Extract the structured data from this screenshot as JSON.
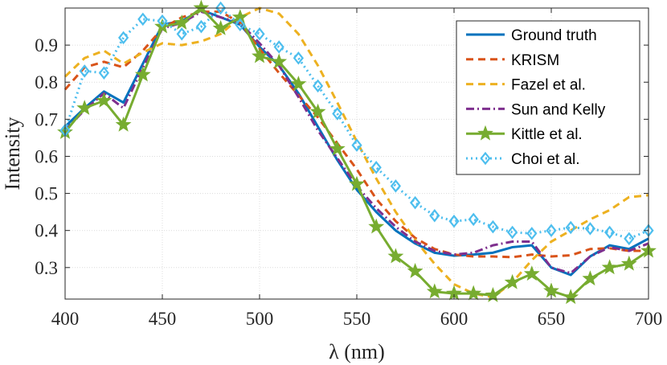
{
  "chart_data": {
    "type": "line",
    "title": "",
    "xlabel": "λ (nm)",
    "ylabel": "Intensity",
    "xlim": [
      400,
      700
    ],
    "ylim": [
      0.215,
      1.0
    ],
    "xticks": [
      400,
      450,
      500,
      550,
      600,
      650,
      700
    ],
    "yticks": [
      0.3,
      0.4,
      0.5,
      0.6,
      0.7,
      0.8,
      0.9
    ],
    "ytick_labels": [
      "0.3",
      "0.4",
      "0.5",
      "0.6",
      "0.7",
      "0.8",
      "0.9"
    ],
    "grid": true,
    "legend_position": "top-right",
    "series": [
      {
        "name": "Ground truth",
        "color": "#0072BD",
        "dash": "solid",
        "marker": "none",
        "x": [
          400,
          410,
          420,
          430,
          440,
          450,
          460,
          470,
          480,
          490,
          500,
          510,
          520,
          530,
          540,
          550,
          560,
          570,
          580,
          590,
          600,
          610,
          620,
          630,
          640,
          650,
          660,
          670,
          680,
          690,
          700
        ],
        "y": [
          0.68,
          0.73,
          0.775,
          0.745,
          0.85,
          0.955,
          0.965,
          0.995,
          0.975,
          0.955,
          0.895,
          0.845,
          0.77,
          0.68,
          0.59,
          0.51,
          0.45,
          0.4,
          0.365,
          0.34,
          0.332,
          0.335,
          0.34,
          0.355,
          0.36,
          0.3,
          0.28,
          0.33,
          0.36,
          0.35,
          0.378
        ]
      },
      {
        "name": "KRISM",
        "color": "#D95319",
        "dash": "dashed",
        "marker": "none",
        "x": [
          400,
          410,
          420,
          430,
          440,
          450,
          460,
          470,
          480,
          490,
          500,
          510,
          520,
          530,
          540,
          550,
          560,
          570,
          580,
          590,
          600,
          610,
          620,
          630,
          640,
          650,
          660,
          670,
          680,
          690,
          700
        ],
        "y": [
          0.78,
          0.84,
          0.855,
          0.84,
          0.885,
          0.945,
          0.975,
          0.99,
          0.99,
          0.96,
          0.89,
          0.825,
          0.765,
          0.705,
          0.635,
          0.565,
          0.485,
          0.425,
          0.38,
          0.35,
          0.335,
          0.33,
          0.33,
          0.328,
          0.335,
          0.33,
          0.333,
          0.35,
          0.352,
          0.345,
          0.345
        ]
      },
      {
        "name": "Fazel et al.",
        "color": "#EDB120",
        "dash": "dashed",
        "marker": "none",
        "x": [
          400,
          410,
          420,
          430,
          440,
          450,
          460,
          470,
          480,
          490,
          500,
          510,
          520,
          530,
          540,
          550,
          560,
          570,
          580,
          590,
          600,
          610,
          620,
          630,
          640,
          650,
          660,
          670,
          680,
          690,
          700
        ],
        "y": [
          0.815,
          0.865,
          0.885,
          0.85,
          0.88,
          0.905,
          0.9,
          0.91,
          0.93,
          0.975,
          1.0,
          0.985,
          0.93,
          0.845,
          0.745,
          0.64,
          0.54,
          0.45,
          0.375,
          0.31,
          0.255,
          0.23,
          0.22,
          0.26,
          0.32,
          0.37,
          0.4,
          0.43,
          0.455,
          0.49,
          0.495
        ]
      },
      {
        "name": "Sun and Kelly",
        "color": "#7E2F8E",
        "dash": "dashdot",
        "marker": "none",
        "x": [
          400,
          410,
          420,
          430,
          440,
          450,
          460,
          470,
          480,
          490,
          500,
          510,
          520,
          530,
          540,
          550,
          560,
          570,
          580,
          590,
          600,
          610,
          620,
          630,
          640,
          650,
          660,
          670,
          680,
          690,
          700
        ],
        "y": [
          0.67,
          0.725,
          0.77,
          0.73,
          0.84,
          0.945,
          0.96,
          0.99,
          0.975,
          0.96,
          0.905,
          0.845,
          0.76,
          0.67,
          0.595,
          0.52,
          0.46,
          0.41,
          0.37,
          0.345,
          0.335,
          0.34,
          0.36,
          0.37,
          0.37,
          0.3,
          0.285,
          0.33,
          0.355,
          0.345,
          0.365
        ]
      },
      {
        "name": "Kittle et al.",
        "color": "#77AC30",
        "dash": "solid",
        "marker": "star",
        "x": [
          400,
          410,
          420,
          430,
          440,
          450,
          460,
          470,
          480,
          490,
          500,
          510,
          520,
          530,
          540,
          550,
          560,
          570,
          580,
          590,
          600,
          610,
          620,
          630,
          640,
          650,
          660,
          670,
          680,
          690,
          700
        ],
        "y": [
          0.665,
          0.73,
          0.75,
          0.685,
          0.82,
          0.95,
          0.96,
          1.0,
          0.945,
          0.975,
          0.87,
          0.855,
          0.795,
          0.72,
          0.62,
          0.525,
          0.41,
          0.33,
          0.29,
          0.235,
          0.23,
          0.23,
          0.225,
          0.26,
          0.283,
          0.237,
          0.22,
          0.27,
          0.3,
          0.31,
          0.345
        ]
      },
      {
        "name": "Choi et al.",
        "color": "#4DBEEE",
        "dash": "dotted",
        "marker": "diamond",
        "x": [
          400,
          410,
          420,
          430,
          440,
          450,
          460,
          470,
          480,
          490,
          500,
          510,
          520,
          530,
          540,
          550,
          560,
          570,
          580,
          590,
          600,
          610,
          620,
          630,
          640,
          650,
          660,
          670,
          680,
          690,
          700
        ],
        "y": [
          0.67,
          0.83,
          0.825,
          0.92,
          0.97,
          0.965,
          0.93,
          0.95,
          1.0,
          0.955,
          0.93,
          0.895,
          0.865,
          0.79,
          0.715,
          0.63,
          0.57,
          0.52,
          0.475,
          0.44,
          0.425,
          0.43,
          0.41,
          0.395,
          0.392,
          0.4,
          0.408,
          0.405,
          0.395,
          0.378,
          0.4
        ]
      }
    ]
  }
}
